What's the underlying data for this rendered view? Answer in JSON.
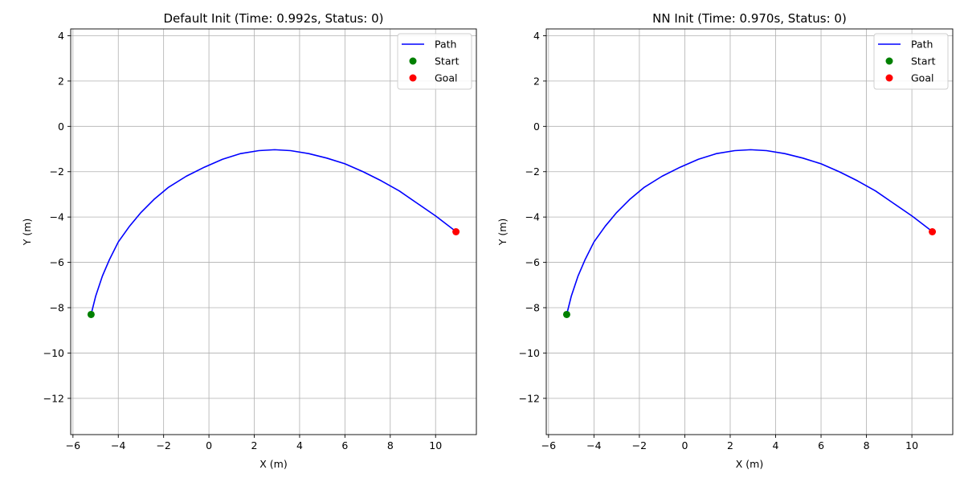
{
  "chart_data": [
    {
      "type": "line",
      "title": "Default Init (Time: 0.992s, Status: 0)",
      "xlabel": "X (m)",
      "ylabel": "Y (m)",
      "xlim": [
        -6.1,
        11.8
      ],
      "ylim": [
        -13.6,
        4.3
      ],
      "xticks": [
        -6,
        -4,
        -2,
        0,
        2,
        4,
        6,
        8,
        10
      ],
      "yticks": [
        -12,
        -10,
        -8,
        -6,
        -4,
        -2,
        0,
        2,
        4
      ],
      "grid": true,
      "legend_position": "top-right",
      "series": [
        {
          "name": "Path",
          "kind": "line",
          "color": "#0000ff",
          "points": [
            [
              -5.2,
              -8.3
            ],
            [
              -5.0,
              -7.5
            ],
            [
              -4.7,
              -6.6
            ],
            [
              -4.4,
              -5.9
            ],
            [
              -4.0,
              -5.1
            ],
            [
              -3.5,
              -4.4
            ],
            [
              -3.0,
              -3.8
            ],
            [
              -2.4,
              -3.2
            ],
            [
              -1.8,
              -2.7
            ],
            [
              -1.0,
              -2.2
            ],
            [
              -0.2,
              -1.8
            ],
            [
              0.6,
              -1.45
            ],
            [
              1.4,
              -1.2
            ],
            [
              2.2,
              -1.07
            ],
            [
              2.9,
              -1.03
            ],
            [
              3.6,
              -1.07
            ],
            [
              4.4,
              -1.2
            ],
            [
              5.2,
              -1.4
            ],
            [
              6.0,
              -1.65
            ],
            [
              6.8,
              -2.0
            ],
            [
              7.6,
              -2.4
            ],
            [
              8.4,
              -2.85
            ],
            [
              9.2,
              -3.4
            ],
            [
              10.0,
              -3.95
            ],
            [
              10.85,
              -4.6
            ]
          ]
        },
        {
          "name": "Start",
          "kind": "marker",
          "color": "#008000",
          "points": [
            [
              -5.2,
              -8.3
            ]
          ]
        },
        {
          "name": "Goal",
          "kind": "marker",
          "color": "#ff0000",
          "points": [
            [
              10.9,
              -4.65
            ]
          ]
        }
      ]
    },
    {
      "type": "line",
      "title": "NN Init (Time: 0.970s, Status: 0)",
      "xlabel": "X (m)",
      "ylabel": "Y (m)",
      "xlim": [
        -6.1,
        11.8
      ],
      "ylim": [
        -13.6,
        4.3
      ],
      "xticks": [
        -6,
        -4,
        -2,
        0,
        2,
        4,
        6,
        8,
        10
      ],
      "yticks": [
        -12,
        -10,
        -8,
        -6,
        -4,
        -2,
        0,
        2,
        4
      ],
      "grid": true,
      "legend_position": "top-right",
      "series": [
        {
          "name": "Path",
          "kind": "line",
          "color": "#0000ff",
          "points": [
            [
              -5.2,
              -8.3
            ],
            [
              -5.0,
              -7.5
            ],
            [
              -4.7,
              -6.6
            ],
            [
              -4.4,
              -5.9
            ],
            [
              -4.0,
              -5.1
            ],
            [
              -3.5,
              -4.4
            ],
            [
              -3.0,
              -3.8
            ],
            [
              -2.4,
              -3.2
            ],
            [
              -1.8,
              -2.7
            ],
            [
              -1.0,
              -2.2
            ],
            [
              -0.2,
              -1.8
            ],
            [
              0.6,
              -1.45
            ],
            [
              1.4,
              -1.2
            ],
            [
              2.2,
              -1.07
            ],
            [
              2.9,
              -1.03
            ],
            [
              3.6,
              -1.07
            ],
            [
              4.4,
              -1.2
            ],
            [
              5.2,
              -1.4
            ],
            [
              6.0,
              -1.65
            ],
            [
              6.8,
              -2.0
            ],
            [
              7.6,
              -2.4
            ],
            [
              8.4,
              -2.85
            ],
            [
              9.2,
              -3.4
            ],
            [
              10.0,
              -3.95
            ],
            [
              10.85,
              -4.6
            ]
          ]
        },
        {
          "name": "Start",
          "kind": "marker",
          "color": "#008000",
          "points": [
            [
              -5.2,
              -8.3
            ]
          ]
        },
        {
          "name": "Goal",
          "kind": "marker",
          "color": "#ff0000",
          "points": [
            [
              10.9,
              -4.65
            ]
          ]
        }
      ]
    }
  ]
}
